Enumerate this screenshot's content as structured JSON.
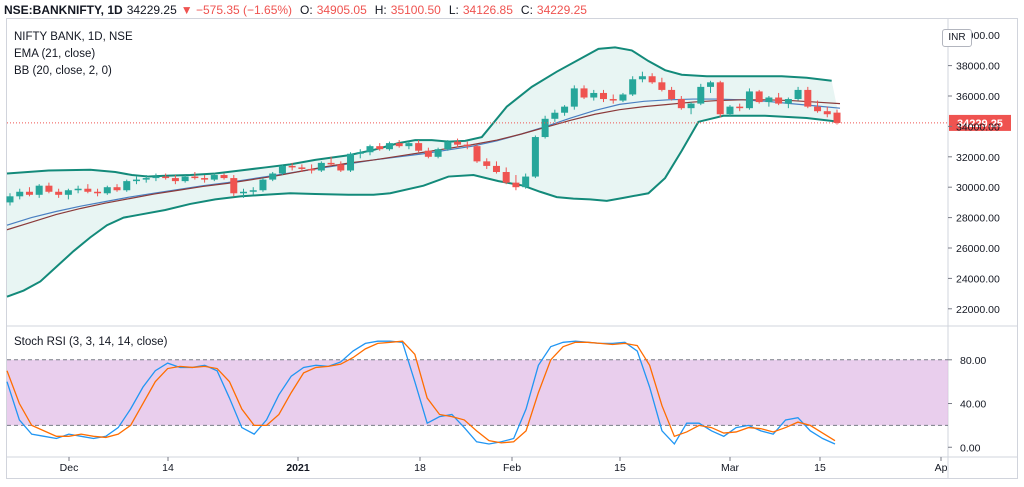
{
  "header": {
    "symbol": "NSE:BANKNIFTY, 1D",
    "last": "34229.25",
    "change": "▼ −575.35 (−1.65%)",
    "open_label": "O:",
    "open": "34905.05",
    "high_label": "H:",
    "high": "35100.50",
    "low_label": "L:",
    "low": "34126.85",
    "close_label": "C:",
    "close": "34229.25"
  },
  "legend": {
    "title": "NIFTY BANK, 1D, NSE",
    "ema": "EMA (21, close)",
    "bb": "BB (20, close, 2, 0)",
    "stoch": "Stoch RSI (3, 3, 14, 14, close)"
  },
  "currency_badge": "INR",
  "colors": {
    "up": "#26a69a",
    "down": "#ef5350",
    "bb": "#138a7a",
    "bb_fill": "#e8f5f3",
    "ema": "#8b3a3a",
    "basis": "#4a7fc1",
    "k": "#2196f3",
    "d": "#ff6d00",
    "stoch_band": "#e1bee7"
  },
  "chart_data": [
    {
      "type": "candlestick",
      "title": "NIFTY BANK, 1D, NSE",
      "ylim": [
        21000,
        41000
      ],
      "y_ticks": [
        "40000.00",
        "38000.00",
        "36000.00",
        "34000.00",
        "32000.00",
        "30000.00",
        "28000.00",
        "26000.00",
        "24000.00",
        "22000.00"
      ],
      "last_price_label": "34229.25",
      "x_ticks": [
        "Dec",
        "14",
        "2021",
        "18",
        "Feb",
        "15",
        "Mar",
        "15",
        "Ap"
      ],
      "candles": [
        [
          29000,
          29600,
          28800,
          29400
        ],
        [
          29400,
          29900,
          29200,
          29700
        ],
        [
          29700,
          30000,
          29400,
          29500
        ],
        [
          29500,
          30200,
          29300,
          30100
        ],
        [
          30100,
          30300,
          29600,
          29700
        ],
        [
          29700,
          29900,
          29300,
          29500
        ],
        [
          29500,
          29900,
          29200,
          29800
        ],
        [
          29800,
          30100,
          29600,
          29900
        ],
        [
          29900,
          30200,
          29600,
          29700
        ],
        [
          29700,
          29900,
          29400,
          29600
        ],
        [
          29600,
          30100,
          29500,
          30000
        ],
        [
          30000,
          30200,
          29700,
          29800
        ],
        [
          29800,
          30500,
          29700,
          30400
        ],
        [
          30400,
          30700,
          30200,
          30500
        ],
        [
          30500,
          30800,
          30300,
          30600
        ],
        [
          30600,
          30900,
          30400,
          30700
        ],
        [
          30700,
          30900,
          30500,
          30600
        ],
        [
          30600,
          30800,
          30200,
          30400
        ],
        [
          30400,
          30800,
          30300,
          30700
        ],
        [
          30700,
          31000,
          30500,
          30600
        ],
        [
          30600,
          30800,
          30300,
          30500
        ],
        [
          30500,
          30900,
          30400,
          30800
        ],
        [
          30800,
          30900,
          30500,
          30600
        ],
        [
          30600,
          30800,
          29400,
          29600
        ],
        [
          29600,
          29900,
          29300,
          29700
        ],
        [
          29700,
          30000,
          29500,
          29800
        ],
        [
          29800,
          30600,
          29700,
          30500
        ],
        [
          30500,
          31000,
          30400,
          30900
        ],
        [
          30900,
          31500,
          30800,
          31400
        ],
        [
          31400,
          31600,
          31100,
          31300
        ],
        [
          31300,
          31500,
          31000,
          31200
        ],
        [
          31200,
          31500,
          30900,
          31100
        ],
        [
          31100,
          31700,
          31000,
          31600
        ],
        [
          31600,
          32000,
          31400,
          31500
        ],
        [
          31500,
          31700,
          31000,
          31100
        ],
        [
          31100,
          32300,
          31000,
          32200
        ],
        [
          32200,
          32500,
          31900,
          32300
        ],
        [
          32300,
          32800,
          32100,
          32700
        ],
        [
          32700,
          32900,
          32400,
          32500
        ],
        [
          32500,
          33000,
          32400,
          32900
        ],
        [
          32900,
          33100,
          32600,
          32700
        ],
        [
          32700,
          33000,
          32500,
          32900
        ],
        [
          32900,
          33100,
          32300,
          32400
        ],
        [
          32400,
          32600,
          31900,
          32000
        ],
        [
          32000,
          32600,
          31900,
          32500
        ],
        [
          32500,
          33100,
          32400,
          33000
        ],
        [
          33000,
          33200,
          32600,
          32800
        ],
        [
          32800,
          33000,
          32500,
          32700
        ],
        [
          32700,
          32800,
          31600,
          31700
        ],
        [
          31700,
          31900,
          31200,
          31400
        ],
        [
          31400,
          31700,
          30900,
          31000
        ],
        [
          31000,
          31300,
          30200,
          30300
        ],
        [
          30300,
          30800,
          29800,
          30000
        ],
        [
          30000,
          30900,
          29900,
          30700
        ],
        [
          30700,
          33400,
          30600,
          33300
        ],
        [
          33300,
          34700,
          33200,
          34500
        ],
        [
          34500,
          35100,
          34300,
          34900
        ],
        [
          34900,
          35400,
          34700,
          35300
        ],
        [
          35300,
          36700,
          35100,
          36500
        ],
        [
          36500,
          36700,
          35800,
          35900
        ],
        [
          35900,
          36400,
          35700,
          36200
        ],
        [
          36200,
          36400,
          35600,
          35800
        ],
        [
          35800,
          36100,
          35500,
          35700
        ],
        [
          35700,
          36200,
          35600,
          36100
        ],
        [
          36100,
          37300,
          36000,
          37100
        ],
        [
          37100,
          37600,
          36900,
          37300
        ],
        [
          37300,
          37500,
          36800,
          36900
        ],
        [
          36900,
          37200,
          36300,
          36400
        ],
        [
          36400,
          36600,
          35700,
          35800
        ],
        [
          35800,
          36000,
          35100,
          35200
        ],
        [
          35200,
          35600,
          34800,
          35500
        ],
        [
          35500,
          36800,
          35400,
          36600
        ],
        [
          36600,
          37000,
          36200,
          36900
        ],
        [
          36900,
          37000,
          34600,
          34800
        ],
        [
          34800,
          35400,
          34700,
          35300
        ],
        [
          35300,
          35500,
          35000,
          35200
        ],
        [
          35200,
          36500,
          35100,
          36300
        ],
        [
          36300,
          36400,
          35500,
          35600
        ],
        [
          35600,
          36000,
          35300,
          35900
        ],
        [
          35900,
          36200,
          35400,
          35500
        ],
        [
          35500,
          35900,
          35200,
          35800
        ],
        [
          35800,
          36600,
          35700,
          36400
        ],
        [
          36400,
          36600,
          35200,
          35300
        ],
        [
          35300,
          35700,
          34900,
          35000
        ],
        [
          35000,
          35300,
          34600,
          34800
        ],
        [
          34905,
          35100,
          34127,
          34229
        ]
      ],
      "ema": [
        27200,
        27700,
        28200,
        28600,
        28950,
        29250,
        29550,
        29800,
        30050,
        30250,
        30500,
        30750,
        31050,
        31350,
        31600,
        31800,
        32050,
        32300,
        32550,
        32800,
        33100,
        33500,
        33950,
        34400,
        34800,
        35100,
        35300,
        35450,
        35600,
        35700,
        35750,
        35750,
        35700,
        35600,
        35500
      ],
      "basis": [
        27500,
        28000,
        28400,
        28750,
        29050,
        29350,
        29600,
        29850,
        30100,
        30300,
        30550,
        30800,
        31050,
        31300,
        31550,
        31800,
        32000,
        32200,
        32450,
        32700,
        33050,
        33500,
        34000,
        34550,
        35050,
        35450,
        35650,
        35750,
        35800,
        35800,
        35750,
        35650,
        35500,
        35350,
        35200
      ],
      "bb_upper": [
        30900,
        31100,
        31150,
        31000,
        30800,
        30700,
        30750,
        30800,
        30900,
        31100,
        31300,
        31500,
        31800,
        32100,
        32450,
        32900,
        33100,
        33100,
        33000,
        33050,
        33300,
        35300,
        36600,
        37600,
        38500,
        39100,
        39200,
        39000,
        38300,
        37700,
        37400,
        37300,
        37300,
        37300,
        37300,
        37200,
        37000
      ],
      "bb_lower": [
        22800,
        23200,
        23800,
        24800,
        25800,
        26700,
        27500,
        28000,
        28200,
        28500,
        28900,
        29200,
        29400,
        29500,
        29600,
        29550,
        29500,
        29500,
        29600,
        30100,
        30700,
        30800,
        30400,
        30100,
        29700,
        29350,
        29250,
        29200,
        29100,
        29300,
        29600,
        30600,
        32400,
        34300,
        34700,
        34700,
        34550,
        34300
      ],
      "bb_x": [
        0,
        0.05,
        0.1,
        0.13,
        0.15,
        0.17,
        0.19,
        0.22,
        0.25,
        0.28,
        0.31,
        0.34,
        0.37,
        0.41,
        0.44,
        0.47,
        0.49,
        0.51,
        0.53,
        0.55,
        0.57,
        0.6,
        0.63,
        0.66,
        0.69,
        0.71,
        0.73,
        0.75,
        0.77,
        0.79,
        0.81,
        0.84,
        0.87,
        0.9,
        0.93,
        0.96,
        0.99
      ],
      "bb_lx": [
        0,
        0.02,
        0.04,
        0.06,
        0.08,
        0.1,
        0.12,
        0.14,
        0.16,
        0.19,
        0.22,
        0.25,
        0.28,
        0.31,
        0.34,
        0.37,
        0.41,
        0.44,
        0.46,
        0.5,
        0.53,
        0.56,
        0.59,
        0.62,
        0.64,
        0.66,
        0.68,
        0.7,
        0.72,
        0.74,
        0.77,
        0.79,
        0.81,
        0.83,
        0.86,
        0.91,
        0.96,
        1.0
      ]
    },
    {
      "type": "line",
      "title": "Stoch RSI (3, 3, 14, 14, close)",
      "ylim": [
        -8,
        110
      ],
      "y_ticks": [
        "80.00",
        "40.00",
        "0.00"
      ],
      "band": [
        20,
        80
      ],
      "series": [
        {
          "name": "K",
          "values": [
            60,
            25,
            12,
            10,
            8,
            12,
            10,
            8,
            10,
            18,
            35,
            55,
            70,
            77,
            73,
            73,
            75,
            70,
            45,
            18,
            12,
            25,
            48,
            65,
            73,
            75,
            74,
            78,
            88,
            95,
            97,
            97,
            96,
            60,
            22,
            28,
            30,
            18,
            5,
            3,
            5,
            8,
            35,
            75,
            92,
            96,
            97,
            96,
            95,
            95,
            96,
            88,
            55,
            15,
            3,
            22,
            22,
            15,
            10,
            18,
            20,
            15,
            12,
            25,
            27,
            15,
            8,
            3
          ]
        },
        {
          "name": "D",
          "values": [
            70,
            40,
            20,
            15,
            10,
            10,
            12,
            10,
            9,
            12,
            20,
            40,
            60,
            72,
            74,
            73,
            74,
            72,
            60,
            35,
            20,
            20,
            30,
            50,
            68,
            73,
            74,
            76,
            82,
            90,
            95,
            96,
            97,
            85,
            45,
            30,
            28,
            25,
            15,
            6,
            4,
            5,
            15,
            50,
            80,
            92,
            96,
            96,
            95,
            94,
            95,
            93,
            75,
            38,
            10,
            14,
            20,
            18,
            13,
            14,
            18,
            17,
            14,
            18,
            23,
            20,
            13,
            6
          ]
        }
      ]
    }
  ]
}
